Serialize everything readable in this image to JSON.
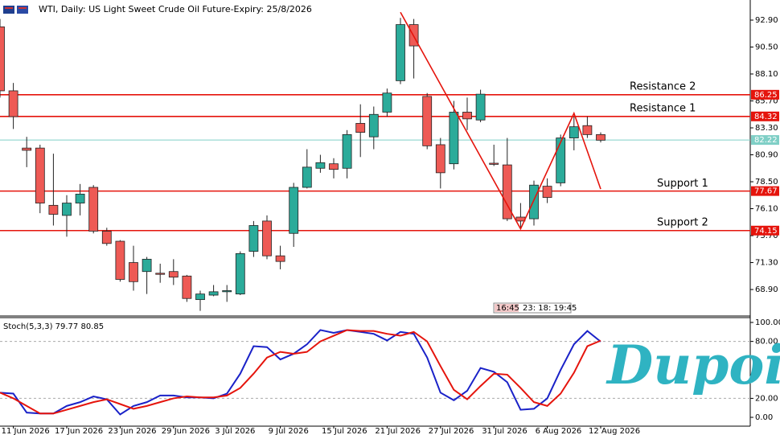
{
  "header": {
    "title": "WTI, Daily:  US Light Sweet Crude Oil Future-Expiry: 25/8/2026"
  },
  "logo": "Dupoin",
  "chart_data": [
    {
      "type": "candlestick",
      "categories": [
        null,
        "11 Jun 2026",
        null,
        null,
        null,
        "17 Jun 2026",
        null,
        null,
        null,
        "23 Jun 2026",
        null,
        null,
        null,
        "29 Jun 2026",
        null,
        null,
        null,
        "3 Jul 2026",
        null,
        null,
        null,
        "9 Jul 2026",
        null,
        null,
        null,
        "15 Jul 2026",
        null,
        null,
        null,
        "21 Jul 2026",
        null,
        null,
        null,
        "27 Jul 2026",
        null,
        null,
        null,
        "31 Jul 2026",
        null,
        null,
        null,
        "6 Aug 2026",
        null,
        null,
        null,
        "12 Aug 2026"
      ],
      "open": [
        92.3,
        86.6,
        81.5,
        81.5,
        76.4,
        75.5,
        76.6,
        78.0,
        74.1,
        73.2,
        71.3,
        70.5,
        70.35,
        70.5,
        70.1,
        68.0,
        68.4,
        68.7,
        68.5,
        72.3,
        75.0,
        71.9,
        73.9,
        78.0,
        79.7,
        80.1,
        79.7,
        83.7,
        82.5,
        84.7,
        87.5,
        92.5,
        86.1,
        81.8,
        80.1,
        84.7,
        84.0,
        80.15,
        80.0,
        75.35,
        75.2,
        78.1,
        78.4,
        82.4,
        83.5,
        82.7
      ],
      "high": [
        93.0,
        87.3,
        82.5,
        81.8,
        81.0,
        77.3,
        78.3,
        78.2,
        74.4,
        73.3,
        72.8,
        71.8,
        71.2,
        71.6,
        70.2,
        68.8,
        69.3,
        69.3,
        72.3,
        75.0,
        75.5,
        72.8,
        78.4,
        81.4,
        80.9,
        80.6,
        83.1,
        85.4,
        85.2,
        86.8,
        93.1,
        93.0,
        86.4,
        82.4,
        85.7,
        86.0,
        86.7,
        81.8,
        82.4,
        76.6,
        78.6,
        78.8,
        82.7,
        84.3,
        84.3,
        82.9
      ],
      "low": [
        86.0,
        83.2,
        79.8,
        75.7,
        74.6,
        73.6,
        75.5,
        73.9,
        72.8,
        69.6,
        68.8,
        68.5,
        69.5,
        69.3,
        67.8,
        67.0,
        68.3,
        67.8,
        68.4,
        71.8,
        71.6,
        70.7,
        72.7,
        77.9,
        79.3,
        78.8,
        78.8,
        80.7,
        81.4,
        84.3,
        87.2,
        87.7,
        81.4,
        77.9,
        79.6,
        83.1,
        83.8,
        79.9,
        75.0,
        74.3,
        74.6,
        76.6,
        78.1,
        81.3,
        82.4,
        82.0
      ],
      "close": [
        86.6,
        84.3,
        81.3,
        76.6,
        75.6,
        76.6,
        77.4,
        74.1,
        73.0,
        69.8,
        69.6,
        71.6,
        70.25,
        70.0,
        68.1,
        68.5,
        68.7,
        68.8,
        72.1,
        74.6,
        71.9,
        71.4,
        78.0,
        79.8,
        80.2,
        79.6,
        82.7,
        82.9,
        84.5,
        86.4,
        92.5,
        90.6,
        81.7,
        79.3,
        84.7,
        84.1,
        86.3,
        80.05,
        75.2,
        75.0,
        78.2,
        77.1,
        82.4,
        83.4,
        82.7,
        82.2
      ],
      "up_color": "#2bab9a",
      "down_color": "#ee5a55",
      "ylim": [
        66.54,
        94.69
      ],
      "yticks": [
        {
          "value": 92.9,
          "label": "92.90"
        },
        {
          "value": 90.5,
          "label": "90.50"
        },
        {
          "value": 88.1,
          "label": "88.10"
        },
        {
          "value": 85.7,
          "label": "85.70"
        },
        {
          "value": 83.3,
          "label": "83.30"
        },
        {
          "value": 80.9,
          "label": "80.90"
        },
        {
          "value": 78.5,
          "label": "78.50"
        },
        {
          "value": 76.1,
          "label": "76.10"
        },
        {
          "value": 73.7,
          "label": "73.70"
        },
        {
          "value": 71.3,
          "label": "71.30"
        },
        {
          "value": 68.9,
          "label": "68.90"
        }
      ],
      "levels": [
        {
          "name": "Resistance 2",
          "value": 86.25,
          "color": "#e5140c"
        },
        {
          "name": "Resistance 1",
          "value": 84.32,
          "color": "#e5140c"
        },
        {
          "value": 82.22,
          "color": "#7fcfc6"
        },
        {
          "name": "Support 1",
          "value": 77.67,
          "color": "#e5140c"
        },
        {
          "name": "Support 2",
          "value": 74.15,
          "color": "#e5140c"
        }
      ],
      "zigzag": {
        "x": [
          30,
          39,
          43,
          45
        ],
        "values": [
          93.6,
          74.3,
          84.6,
          77.85
        ],
        "color": "#e5140c"
      },
      "countdown": [
        "16:45",
        "23: 18: 19:45"
      ]
    },
    {
      "type": "line",
      "title": "Stoch(5,3,3) 79.77 80.85",
      "ylim": [
        -9.3,
        105.1
      ],
      "yticks": [
        {
          "value": 100,
          "label": "100.00"
        },
        {
          "value": 80,
          "label": "80.00"
        },
        {
          "value": 20,
          "label": "20.00"
        },
        {
          "value": 0,
          "label": "0.00"
        }
      ],
      "levels": [
        80,
        20
      ],
      "series": [
        {
          "color": "#1a22c8",
          "values": [
            26,
            25,
            5,
            4,
            4,
            12,
            16,
            22,
            19,
            3,
            12,
            16,
            23,
            23,
            21,
            21,
            20,
            25,
            46,
            75,
            74,
            61,
            67,
            77,
            92,
            89,
            92,
            90,
            88,
            81,
            90,
            88,
            63,
            26,
            18,
            28,
            52,
            48,
            37,
            8,
            9,
            20,
            50,
            77,
            91,
            79.77
          ]
        },
        {
          "color": "#e5140c",
          "values": [
            26,
            20,
            12,
            4,
            4,
            8,
            12,
            16,
            19,
            14,
            9,
            12,
            16,
            20,
            22,
            21,
            21,
            23,
            31,
            46,
            63,
            69,
            67,
            69,
            80,
            86,
            92,
            91,
            91,
            88,
            86,
            90,
            80,
            54,
            29,
            19,
            33,
            46,
            45,
            31,
            16,
            12,
            25,
            47,
            75,
            80.85
          ]
        }
      ]
    }
  ]
}
